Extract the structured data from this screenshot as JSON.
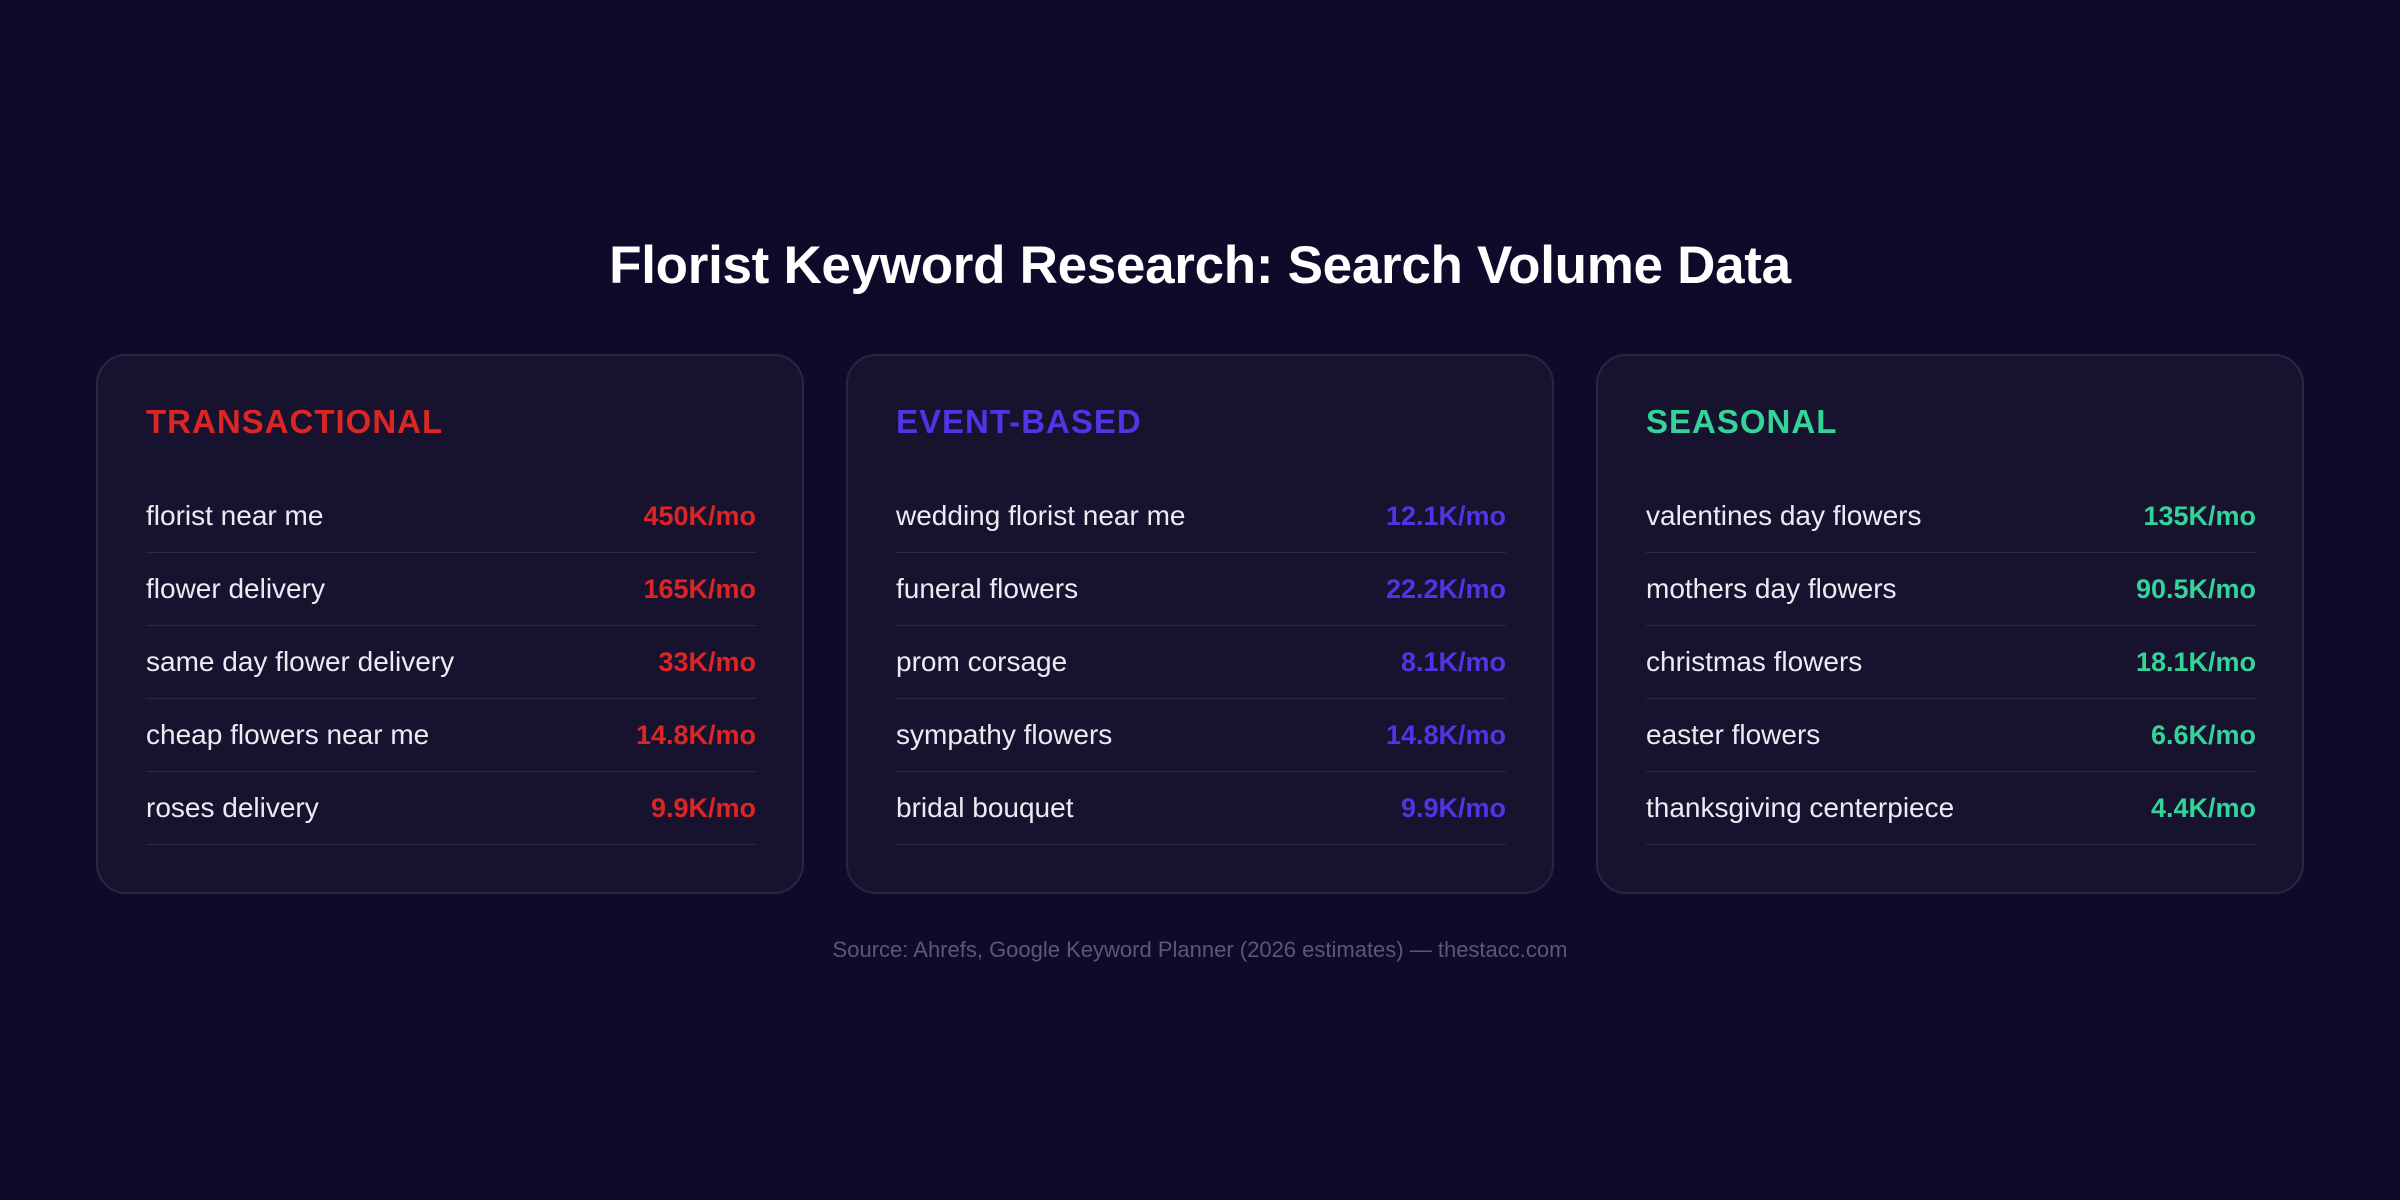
{
  "title": "Florist Keyword Research: Search Volume Data",
  "colors": {
    "background": "#0e0a2a",
    "card": "#17132f",
    "transactional": "#dc2626",
    "event_based": "#4f35e6",
    "seasonal": "#34d399"
  },
  "categories": [
    {
      "label": "TRANSACTIONAL",
      "color": "#dc2626",
      "rows": [
        {
          "keyword": "florist near me",
          "volume": "450K/mo"
        },
        {
          "keyword": "flower delivery",
          "volume": "165K/mo"
        },
        {
          "keyword": "same day flower delivery",
          "volume": "33K/mo"
        },
        {
          "keyword": "cheap flowers near me",
          "volume": "14.8K/mo"
        },
        {
          "keyword": "roses delivery",
          "volume": "9.9K/mo"
        }
      ]
    },
    {
      "label": "EVENT-BASED",
      "color": "#4f35e6",
      "rows": [
        {
          "keyword": "wedding florist near me",
          "volume": "12.1K/mo"
        },
        {
          "keyword": "funeral flowers",
          "volume": "22.2K/mo"
        },
        {
          "keyword": "prom corsage",
          "volume": "8.1K/mo"
        },
        {
          "keyword": "sympathy flowers",
          "volume": "14.8K/mo"
        },
        {
          "keyword": "bridal bouquet",
          "volume": "9.9K/mo"
        }
      ]
    },
    {
      "label": "SEASONAL",
      "color": "#34d399",
      "rows": [
        {
          "keyword": "valentines day flowers",
          "volume": "135K/mo"
        },
        {
          "keyword": "mothers day flowers",
          "volume": "90.5K/mo"
        },
        {
          "keyword": "christmas flowers",
          "volume": "18.1K/mo"
        },
        {
          "keyword": "easter flowers",
          "volume": "6.6K/mo"
        },
        {
          "keyword": "thanksgiving centerpiece",
          "volume": "4.4K/mo"
        }
      ]
    }
  ],
  "source": "Source: Ahrefs, Google Keyword Planner (2026 estimates) — thestacc.com"
}
